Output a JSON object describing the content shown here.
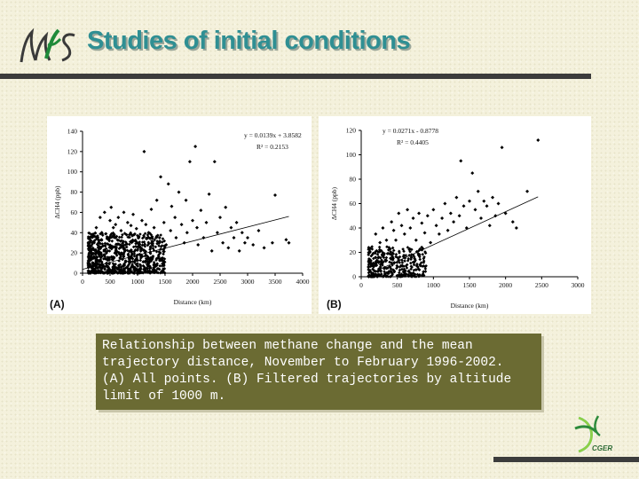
{
  "header": {
    "title": "Studies of initial conditions",
    "logo_text": "CGER"
  },
  "caption": "Relationship between methane change and the mean trajectory distance, November to February 1996-2002. (A) All points. (B) Filtered trajectories by altitude limit of 1000 m.",
  "colors": {
    "title": "#2f8f93",
    "rule": "#3c3c3c",
    "caption_bg": "#6b6b33",
    "background": "#f4f1dc"
  },
  "chart_data": [
    {
      "panel": "(A)",
      "type": "scatter",
      "xlabel": "Distance (km)",
      "ylabel": "ΔCH4 (ppb)",
      "xlim": [
        0,
        4000
      ],
      "ylim": [
        0,
        140
      ],
      "xticks": [
        0,
        500,
        1000,
        1500,
        2000,
        2500,
        3000,
        3500,
        4000
      ],
      "yticks": [
        0,
        20,
        40,
        60,
        80,
        100,
        120,
        140
      ],
      "equation": "y = 0.0139x + 3.8582",
      "r2": "R² = 0.2153",
      "fit": {
        "slope": 0.0139,
        "intercept": 3.8582,
        "x_range": [
          0,
          3750
        ]
      },
      "dense_cluster": {
        "x_range": [
          100,
          1500
        ],
        "y_range": [
          0,
          40
        ]
      },
      "points": [
        [
          180,
          30
        ],
        [
          250,
          45
        ],
        [
          320,
          55
        ],
        [
          350,
          40
        ],
        [
          400,
          60
        ],
        [
          450,
          35
        ],
        [
          500,
          52
        ],
        [
          520,
          65
        ],
        [
          560,
          45
        ],
        [
          600,
          48
        ],
        [
          650,
          55
        ],
        [
          700,
          42
        ],
        [
          750,
          60
        ],
        [
          800,
          38
        ],
        [
          820,
          50
        ],
        [
          880,
          47
        ],
        [
          920,
          58
        ],
        [
          980,
          44
        ],
        [
          1020,
          35
        ],
        [
          1080,
          52
        ],
        [
          1120,
          120
        ],
        [
          1150,
          48
        ],
        [
          1200,
          40
        ],
        [
          1250,
          63
        ],
        [
          1300,
          45
        ],
        [
          1350,
          72
        ],
        [
          1400,
          35
        ],
        [
          1420,
          95
        ],
        [
          1480,
          50
        ],
        [
          1520,
          28
        ],
        [
          1560,
          88
        ],
        [
          1600,
          42
        ],
        [
          1620,
          66
        ],
        [
          1680,
          55
        ],
        [
          1700,
          35
        ],
        [
          1750,
          80
        ],
        [
          1800,
          48
        ],
        [
          1850,
          30
        ],
        [
          1880,
          72
        ],
        [
          1900,
          40
        ],
        [
          1950,
          110
        ],
        [
          2000,
          52
        ],
        [
          2050,
          125
        ],
        [
          2080,
          45
        ],
        [
          2100,
          28
        ],
        [
          2150,
          62
        ],
        [
          2200,
          35
        ],
        [
          2250,
          50
        ],
        [
          2300,
          78
        ],
        [
          2350,
          22
        ],
        [
          2400,
          110
        ],
        [
          2450,
          40
        ],
        [
          2500,
          55
        ],
        [
          2550,
          30
        ],
        [
          2600,
          65
        ],
        [
          2650,
          25
        ],
        [
          2700,
          45
        ],
        [
          2750,
          35
        ],
        [
          2800,
          50
        ],
        [
          2850,
          22
        ],
        [
          2900,
          40
        ],
        [
          2950,
          30
        ],
        [
          3000,
          35
        ],
        [
          3100,
          28
        ],
        [
          3200,
          42
        ],
        [
          3300,
          25
        ],
        [
          3450,
          30
        ],
        [
          3500,
          77
        ],
        [
          3700,
          33
        ],
        [
          3750,
          30
        ]
      ]
    },
    {
      "panel": "(B)",
      "type": "scatter",
      "xlabel": "Distance (km)",
      "ylabel": "ΔCH4 (ppb)",
      "xlim": [
        0,
        3000
      ],
      "ylim": [
        0,
        120
      ],
      "xticks": [
        0,
        500,
        1000,
        1500,
        2000,
        2500,
        3000
      ],
      "yticks": [
        0,
        20,
        40,
        60,
        80,
        100,
        120
      ],
      "equation": "y = 0.0271x - 0.8778",
      "r2": "R² = 0.4405",
      "fit": {
        "slope": 0.0271,
        "intercept": -0.8778,
        "x_range": [
          150,
          2450
        ]
      },
      "dense_cluster": {
        "x_range": [
          100,
          900
        ],
        "y_range": [
          0,
          25
        ]
      },
      "points": [
        [
          200,
          35
        ],
        [
          260,
          28
        ],
        [
          300,
          40
        ],
        [
          350,
          30
        ],
        [
          380,
          22
        ],
        [
          420,
          45
        ],
        [
          450,
          38
        ],
        [
          480,
          30
        ],
        [
          520,
          52
        ],
        [
          560,
          42
        ],
        [
          600,
          35
        ],
        [
          640,
          55
        ],
        [
          680,
          40
        ],
        [
          720,
          48
        ],
        [
          760,
          30
        ],
        [
          800,
          52
        ],
        [
          840,
          44
        ],
        [
          880,
          36
        ],
        [
          920,
          50
        ],
        [
          960,
          28
        ],
        [
          1000,
          55
        ],
        [
          1040,
          42
        ],
        [
          1080,
          35
        ],
        [
          1120,
          48
        ],
        [
          1160,
          60
        ],
        [
          1200,
          38
        ],
        [
          1240,
          52
        ],
        [
          1280,
          45
        ],
        [
          1320,
          65
        ],
        [
          1360,
          50
        ],
        [
          1380,
          95
        ],
        [
          1420,
          58
        ],
        [
          1460,
          40
        ],
        [
          1500,
          62
        ],
        [
          1540,
          85
        ],
        [
          1580,
          55
        ],
        [
          1620,
          70
        ],
        [
          1660,
          48
        ],
        [
          1700,
          62
        ],
        [
          1740,
          58
        ],
        [
          1780,
          42
        ],
        [
          1820,
          65
        ],
        [
          1860,
          50
        ],
        [
          1900,
          60
        ],
        [
          1950,
          106
        ],
        [
          2000,
          52
        ],
        [
          2100,
          45
        ],
        [
          2150,
          40
        ],
        [
          2300,
          70
        ],
        [
          2450,
          112
        ]
      ]
    }
  ]
}
